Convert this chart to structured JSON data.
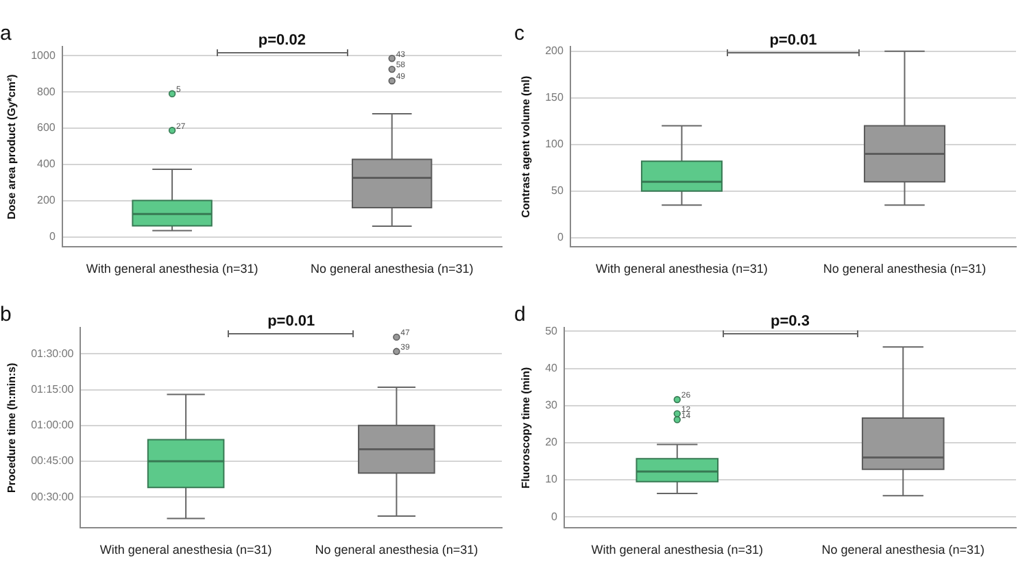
{
  "chart_data": [
    {
      "type": "box",
      "title": "a",
      "ylabel": "Dose area product (Gy*cm²)",
      "categories": [
        "With general anesthesia (n=31)",
        "No general anesthesia (n=31)"
      ],
      "colors": [
        "#5cc98a",
        "#999999"
      ],
      "boxes": [
        {
          "low": 35,
          "q1": 62,
          "median": 127,
          "q3": 202,
          "high": 374,
          "outliers": [
            588,
            790
          ]
        },
        {
          "low": 60,
          "q1": 162,
          "median": 326,
          "q3": 428,
          "high": 680,
          "outliers": [
            861,
            925,
            985
          ]
        }
      ],
      "ylim": [
        -55,
        1050
      ],
      "yticks": [
        0,
        200,
        400,
        600,
        800,
        1000
      ],
      "grid": "y",
      "annotations": [
        "p=0.02",
        "27",
        "5",
        "49",
        "58",
        "43"
      ]
    },
    {
      "type": "box",
      "title": "c",
      "ylabel": "Contrast agent volume (ml)",
      "categories": [
        "With general anesthesia (n=31)",
        "No general anesthesia (n=31)"
      ],
      "colors": [
        "#5cc98a",
        "#999999"
      ],
      "boxes": [
        {
          "low": 35,
          "q1": 50,
          "median": 60,
          "q3": 82,
          "high": 120
        },
        {
          "low": 35,
          "q1": 60,
          "median": 90,
          "q3": 120,
          "high": 200
        }
      ],
      "ylim": [
        -10,
        205
      ],
      "yticks": [
        0,
        50,
        100,
        150,
        200
      ],
      "grid": "y",
      "annotations": [
        "p=0.01"
      ]
    },
    {
      "type": "box",
      "title": "b",
      "ylabel": "Procedure time (h:min:s)",
      "categories": [
        "With general anesthesia (n=31)",
        "No general anesthesia (n=31)"
      ],
      "colors": [
        "#5cc98a",
        "#999999"
      ],
      "boxes": [
        {
          "low": 21,
          "q1": 34,
          "median": 45,
          "q3": 54,
          "high": 73
        },
        {
          "low": 22,
          "q1": 40,
          "median": 50,
          "q3": 60,
          "high": 76,
          "outliers": [
            91,
            97
          ]
        }
      ],
      "ylim": [
        17,
        101
      ],
      "yticks": [
        {
          "value": 30,
          "label": "00:30:00"
        },
        {
          "value": 45,
          "label": "00:45:00"
        },
        {
          "value": 60,
          "label": "01:00:00"
        },
        {
          "value": 75,
          "label": "01:15:00"
        },
        {
          "value": 90,
          "label": "01:30:00"
        }
      ],
      "grid": "y",
      "annotations": [
        "p=0.01",
        "39",
        "47"
      ]
    },
    {
      "type": "box",
      "title": "d",
      "ylabel": "Fluoroscopy time (min)",
      "categories": [
        "With general anesthesia (n=31)",
        "No general anesthesia (n=31)"
      ],
      "colors": [
        "#5cc98a",
        "#999999"
      ],
      "boxes": [
        {
          "low": 6.3,
          "q1": 9.5,
          "median": 12.2,
          "q3": 15.7,
          "high": 19.5,
          "outliers": [
            26.2,
            27.8,
            31.6
          ]
        },
        {
          "low": 5.7,
          "q1": 12.8,
          "median": 16,
          "q3": 26.6,
          "high": 45.8
        }
      ],
      "ylim": [
        -3,
        51
      ],
      "yticks": [
        0,
        10,
        20,
        30,
        40,
        50
      ],
      "grid": "y",
      "annotations": [
        "p=0.3",
        "14",
        "12",
        "26"
      ]
    }
  ]
}
